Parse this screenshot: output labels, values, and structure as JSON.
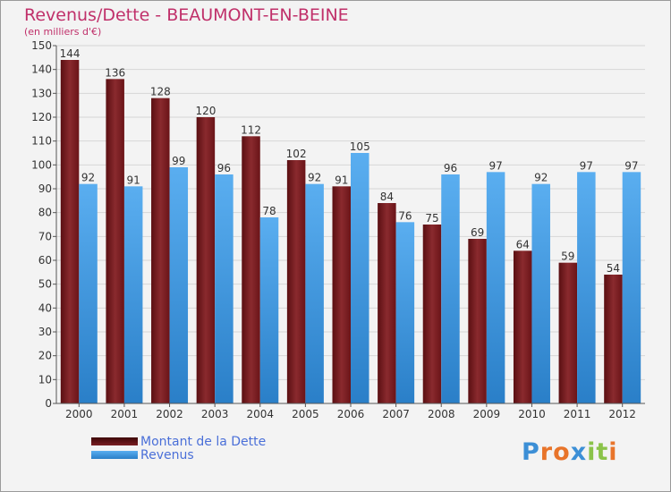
{
  "chart_data": {
    "type": "bar",
    "title": "Revenus/Dette - BEAUMONT-EN-BEINE",
    "subtitle": "(en milliers d'€)",
    "categories": [
      "2000",
      "2001",
      "2002",
      "2003",
      "2004",
      "2005",
      "2006",
      "2007",
      "2008",
      "2009",
      "2010",
      "2011",
      "2012"
    ],
    "series": [
      {
        "name": "Montant de la Dette",
        "color": "#7a1e22",
        "values": [
          144,
          136,
          128,
          120,
          112,
          102,
          91,
          84,
          75,
          69,
          64,
          59,
          54
        ]
      },
      {
        "name": "Revenus",
        "color": "#3b9ae6",
        "values": [
          92,
          91,
          99,
          96,
          78,
          92,
          105,
          76,
          96,
          97,
          92,
          97,
          97
        ]
      }
    ],
    "ylim": [
      0,
      150
    ],
    "yticks": [
      0,
      10,
      20,
      30,
      40,
      50,
      60,
      70,
      80,
      90,
      100,
      110,
      120,
      130,
      140,
      150
    ],
    "grid": true,
    "legend": "bottom-left"
  },
  "logo": {
    "letters": [
      "P",
      "r",
      "o",
      "x",
      "i",
      "t",
      "i"
    ],
    "colors": [
      "#3c8fd6",
      "#e8742a",
      "#e8742a",
      "#3c8fd6",
      "#8bc34a",
      "#8bc34a",
      "#e8742a"
    ]
  }
}
